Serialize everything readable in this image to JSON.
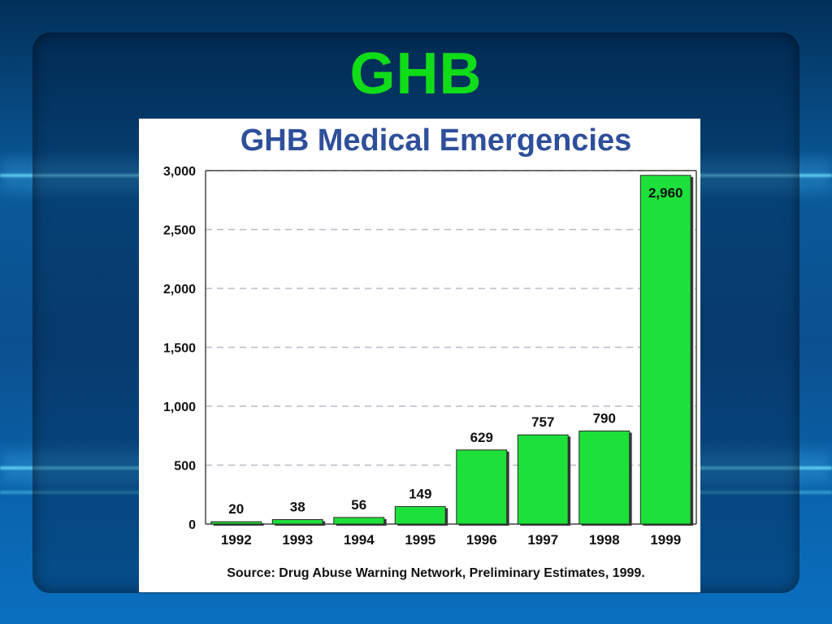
{
  "slide": {
    "title": "GHB"
  },
  "chart_data": {
    "type": "bar",
    "title": "GHB Medical Emergencies",
    "source": "Source: Drug Abuse Warning Network, Preliminary Estimates, 1999.",
    "categories": [
      "1992",
      "1993",
      "1994",
      "1995",
      "1996",
      "1997",
      "1998",
      "1999"
    ],
    "values": [
      20,
      38,
      56,
      149,
      629,
      757,
      790,
      2960
    ],
    "data_labels": [
      "20",
      "38",
      "56",
      "149",
      "629",
      "757",
      "790",
      "2,960"
    ],
    "ylim": [
      0,
      3000
    ],
    "yticks": [
      0,
      500,
      1000,
      1500,
      2000,
      2500,
      3000
    ],
    "ytick_labels": [
      "0",
      "500",
      "1,000",
      "1,500",
      "2,000",
      "2,500",
      "3,000"
    ],
    "grid": true,
    "bar_color": "#1ee03a",
    "xlabel": "",
    "ylabel": ""
  }
}
